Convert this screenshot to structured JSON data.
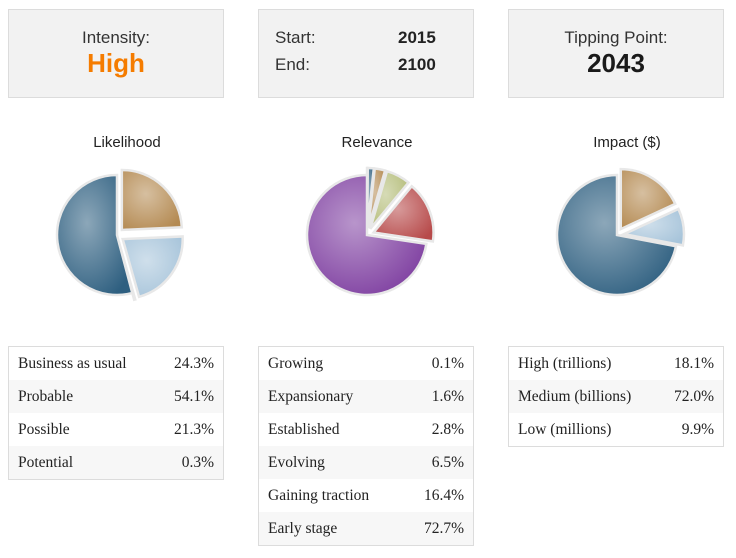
{
  "intensity": {
    "label": "Intensity:",
    "value": "High"
  },
  "period": {
    "start_label": "Start:",
    "start_value": "2015",
    "end_label": "End:",
    "end_value": "2100"
  },
  "tipping": {
    "label": "Tipping Point:",
    "value": "2043"
  },
  "colors": {
    "accent": "#f57c00",
    "blue": "#2e5f80",
    "tan": "#b48a52",
    "lightblue": "#a7c4da",
    "purple": "#7e3ea0",
    "red": "#b74a4a",
    "olive": "#b5bd7a"
  },
  "chart_data": [
    {
      "type": "pie",
      "title": "Likelihood",
      "slices": [
        {
          "label": "Business as usual",
          "value": 24.3,
          "display": "24.3%",
          "color": "#b48a52"
        },
        {
          "label": "Probable",
          "value": 54.1,
          "display": "54.1%",
          "color": "#2e5f80"
        },
        {
          "label": "Possible",
          "value": 21.3,
          "display": "21.3%",
          "color": "#a7c4da"
        },
        {
          "label": "Potential",
          "value": 0.3,
          "display": "0.3%",
          "color": "#d9d9d9"
        }
      ]
    },
    {
      "type": "pie",
      "title": "Relevance",
      "slices": [
        {
          "label": "Growing",
          "value": 0.1,
          "display": "0.1%",
          "color": "#3a6f94"
        },
        {
          "label": "Expansionary",
          "value": 1.6,
          "display": "1.6%",
          "color": "#2e5f80"
        },
        {
          "label": "Established",
          "value": 2.8,
          "display": "2.8%",
          "color": "#b48a52"
        },
        {
          "label": "Evolving",
          "value": 6.5,
          "display": "6.5%",
          "color": "#b5bd7a"
        },
        {
          "label": "Gaining traction",
          "value": 16.4,
          "display": "16.4%",
          "color": "#b74a4a"
        },
        {
          "label": "Early stage",
          "value": 72.7,
          "display": "72.7%",
          "color": "#7e3ea0"
        }
      ]
    },
    {
      "type": "pie",
      "title": "Impact ($)",
      "slices": [
        {
          "label": "High (trillions)",
          "value": 18.1,
          "display": "18.1%",
          "color": "#b48a52"
        },
        {
          "label": "Medium (billions)",
          "value": 72.0,
          "display": "72.0%",
          "color": "#2e5f80"
        },
        {
          "label": "Low (millions)",
          "value": 9.9,
          "display": "9.9%",
          "color": "#a7c4da"
        }
      ]
    }
  ]
}
